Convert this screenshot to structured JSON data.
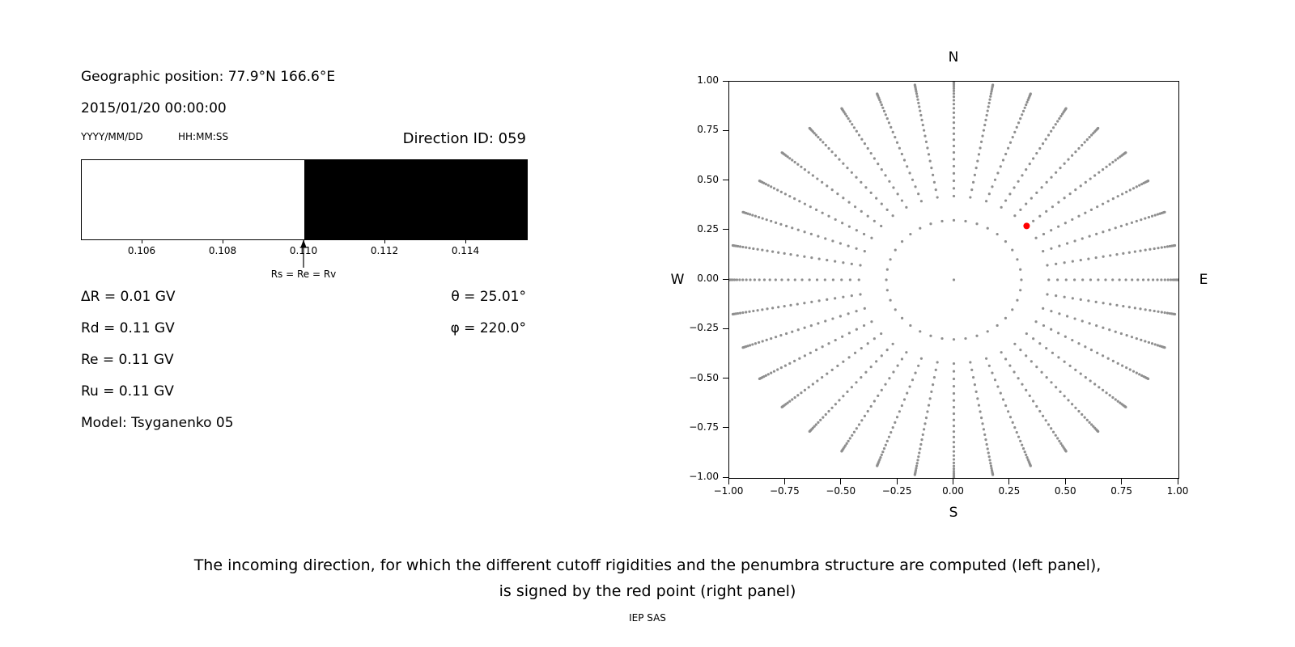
{
  "header": {
    "geo_position": "Geographic position: 77.9°N 166.6°E",
    "datetime": "2015/01/20 00:00:00",
    "date_format_label": "YYYY/MM/DD",
    "time_format_label": "HH:MM:SS",
    "direction_id": "Direction ID: 059"
  },
  "penumbra_panel": {
    "tick_labels": [
      "0.106",
      "0.108",
      "0.110",
      "0.112",
      "0.114"
    ],
    "arrow_label": "Rs = Re = Rv",
    "params": [
      "ΔR = 0.01 GV",
      "Rd = 0.11 GV",
      "Re = 0.11 GV",
      "Ru = 0.11 GV",
      "Model: Tsyganenko 05"
    ],
    "theta": "θ = 25.01°",
    "phi": "φ = 220.0°"
  },
  "direction_panel": {
    "compass": {
      "top": "N",
      "bottom": "S",
      "left": "W",
      "right": "E"
    },
    "x_tick_labels": [
      "−1.00",
      "−0.75",
      "−0.50",
      "−0.25",
      "0.00",
      "0.25",
      "0.50",
      "0.75",
      "1.00"
    ],
    "y_tick_labels": [
      "1.00",
      "0.75",
      "0.50",
      "0.25",
      "0.00",
      "−0.25",
      "−0.50",
      "−0.75",
      "−1.00"
    ]
  },
  "caption": {
    "line1": "The incoming direction, for which the different cutoff rigidities and the penumbra structure are computed (left panel),",
    "line2": "is signed by the red point (right panel)"
  },
  "footer": "IEP SAS",
  "colors": {
    "grid_dot": "#8f8f8f",
    "highlight_dot": "#ff0000",
    "forbidden_band": "#000000",
    "allowed_band": "#ffffff"
  },
  "chart_data": [
    {
      "type": "bar",
      "panel": "left-penumbra",
      "xlim": [
        0.1045,
        0.1155
      ],
      "xticks": [
        0.106,
        0.108,
        0.11,
        0.112,
        0.114
      ],
      "segments": [
        {
          "from": 0.1045,
          "to": 0.11,
          "color": "#ffffff"
        },
        {
          "from": 0.11,
          "to": 0.1155,
          "color": "#000000"
        }
      ],
      "annotation": {
        "x": 0.11,
        "label": "Rs = Re = Rv"
      }
    },
    {
      "type": "scatter",
      "panel": "right-directions",
      "xlim": [
        -1,
        1
      ],
      "ylim": [
        -1,
        1
      ],
      "xticks": [
        -1,
        -0.75,
        -0.5,
        -0.25,
        0,
        0.25,
        0.5,
        0.75,
        1
      ],
      "yticks": [
        1,
        0.75,
        0.5,
        0.25,
        0,
        -0.25,
        -0.5,
        -0.75,
        -1
      ],
      "grid": false,
      "direction_grid": {
        "azimuth_deg": {
          "start": 0,
          "step": 10,
          "count": 36
        },
        "radii": [
          0.3007,
          0.4226,
          0.4617,
          0.5,
          0.5373,
          0.5736,
          0.6088,
          0.6428,
          0.6756,
          0.7071,
          0.7373,
          0.766,
          0.7934,
          0.8192,
          0.8434,
          0.866,
          0.887,
          0.9063,
          0.9239,
          0.9397,
          0.9537,
          0.9659,
          0.9763,
          0.9848,
          0.9914,
          0.9962,
          0.999
        ],
        "center_point": [
          0,
          0
        ],
        "color": "#8f8f8f",
        "marker_size": 1.6
      },
      "highlight_point": {
        "x": 0.324,
        "y": 0.272,
        "color": "#ff0000",
        "marker_size": 4
      }
    }
  ]
}
